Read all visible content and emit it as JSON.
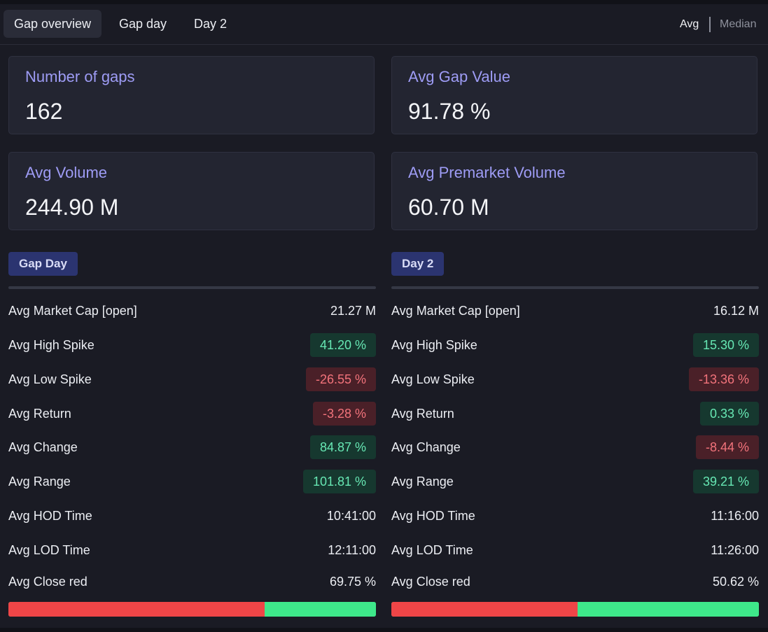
{
  "tabs": [
    {
      "label": "Gap overview",
      "active": true
    },
    {
      "label": "Gap day",
      "active": false
    },
    {
      "label": "Day 2",
      "active": false
    }
  ],
  "toggle": {
    "avg": "Avg",
    "median": "Median",
    "selected": "Avg"
  },
  "cards": [
    {
      "label": "Number of gaps",
      "value": "162"
    },
    {
      "label": "Avg Gap Value",
      "value": "91.78 %"
    },
    {
      "label": "Avg Volume",
      "value": "244.90 M"
    },
    {
      "label": "Avg Premarket Volume",
      "value": "60.70 M"
    }
  ],
  "colors": {
    "accent_label": "#9e9cf5",
    "positive": "#67e8b4",
    "negative": "#f2737b",
    "bar_red": "#ef4547",
    "bar_green": "#3ee88a"
  },
  "sections": [
    {
      "title": "Gap Day",
      "rows": [
        {
          "label": "Avg Market Cap [open]",
          "value": "21.27 M",
          "tone": "none"
        },
        {
          "label": "Avg High Spike",
          "value": "41.20 %",
          "tone": "pos"
        },
        {
          "label": "Avg Low Spike",
          "value": "-26.55 %",
          "tone": "neg"
        },
        {
          "label": "Avg Return",
          "value": "-3.28 %",
          "tone": "neg"
        },
        {
          "label": "Avg Change",
          "value": "84.87 %",
          "tone": "pos"
        },
        {
          "label": "Avg Range",
          "value": "101.81 %",
          "tone": "pos"
        },
        {
          "label": "Avg HOD Time",
          "value": "10:41:00",
          "tone": "none"
        },
        {
          "label": "Avg LOD Time",
          "value": "12:11:00",
          "tone": "none"
        },
        {
          "label": "Avg Close red",
          "value": "69.75 %",
          "tone": "none"
        }
      ],
      "close_red_fraction": 0.6975
    },
    {
      "title": "Day 2",
      "rows": [
        {
          "label": "Avg Market Cap [open]",
          "value": "16.12 M",
          "tone": "none"
        },
        {
          "label": "Avg High Spike",
          "value": "15.30 %",
          "tone": "pos"
        },
        {
          "label": "Avg Low Spike",
          "value": "-13.36 %",
          "tone": "neg"
        },
        {
          "label": "Avg Return",
          "value": "0.33 %",
          "tone": "pos"
        },
        {
          "label": "Avg Change",
          "value": "-8.44 %",
          "tone": "neg"
        },
        {
          "label": "Avg Range",
          "value": "39.21 %",
          "tone": "pos"
        },
        {
          "label": "Avg HOD Time",
          "value": "11:16:00",
          "tone": "none"
        },
        {
          "label": "Avg LOD Time",
          "value": "11:26:00",
          "tone": "none"
        },
        {
          "label": "Avg Close red",
          "value": "50.62 %",
          "tone": "none"
        }
      ],
      "close_red_fraction": 0.5062
    }
  ]
}
